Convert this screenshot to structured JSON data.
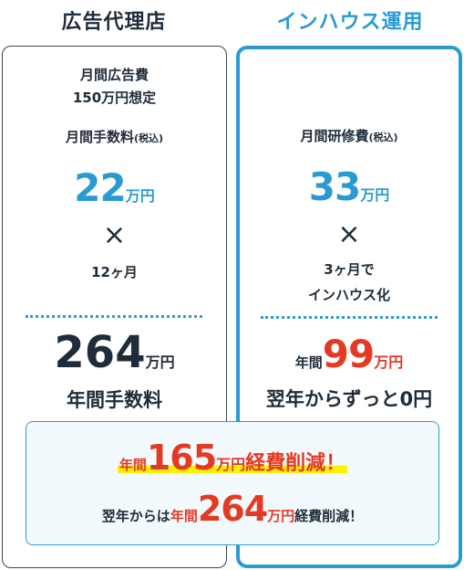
{
  "agency": {
    "heading": "広告代理店",
    "ad_budget_line1": "月間広告費",
    "ad_budget_line2": "150万円想定",
    "fee_label": "月間手数料",
    "tax_note": "(税込)",
    "fee_amount": "22",
    "fee_unit": "万円",
    "times": "×",
    "months": "12ヶ月",
    "total_amount": "264",
    "total_unit": "万円",
    "total_label": "年間手数料"
  },
  "inhouse": {
    "heading": "インハウス運用",
    "training_label": "月間研修費",
    "tax_note": "(税込)",
    "training_amount": "33",
    "training_unit": "万円",
    "times": "×",
    "months_line1": "3ヶ月で",
    "months_line2": "インハウス化",
    "annual_prefix": "年間",
    "annual_amount": "99",
    "annual_unit": "万円",
    "next_year": "翌年からずっと0円"
  },
  "savings": {
    "line1_prefix": "年間",
    "line1_amount": "165",
    "line1_unit": "万円",
    "line1_suffix": "経費削減！",
    "line2_prefix": "翌年からは",
    "line2_year": "年間",
    "line2_amount": "264",
    "line2_unit": "万円",
    "line2_suffix": "経費削減！"
  },
  "colors": {
    "accent_blue": "#2a9bd2",
    "accent_red": "#e43a24",
    "highlight_yellow": "#fff200",
    "text_dark": "#1f2d3a"
  }
}
